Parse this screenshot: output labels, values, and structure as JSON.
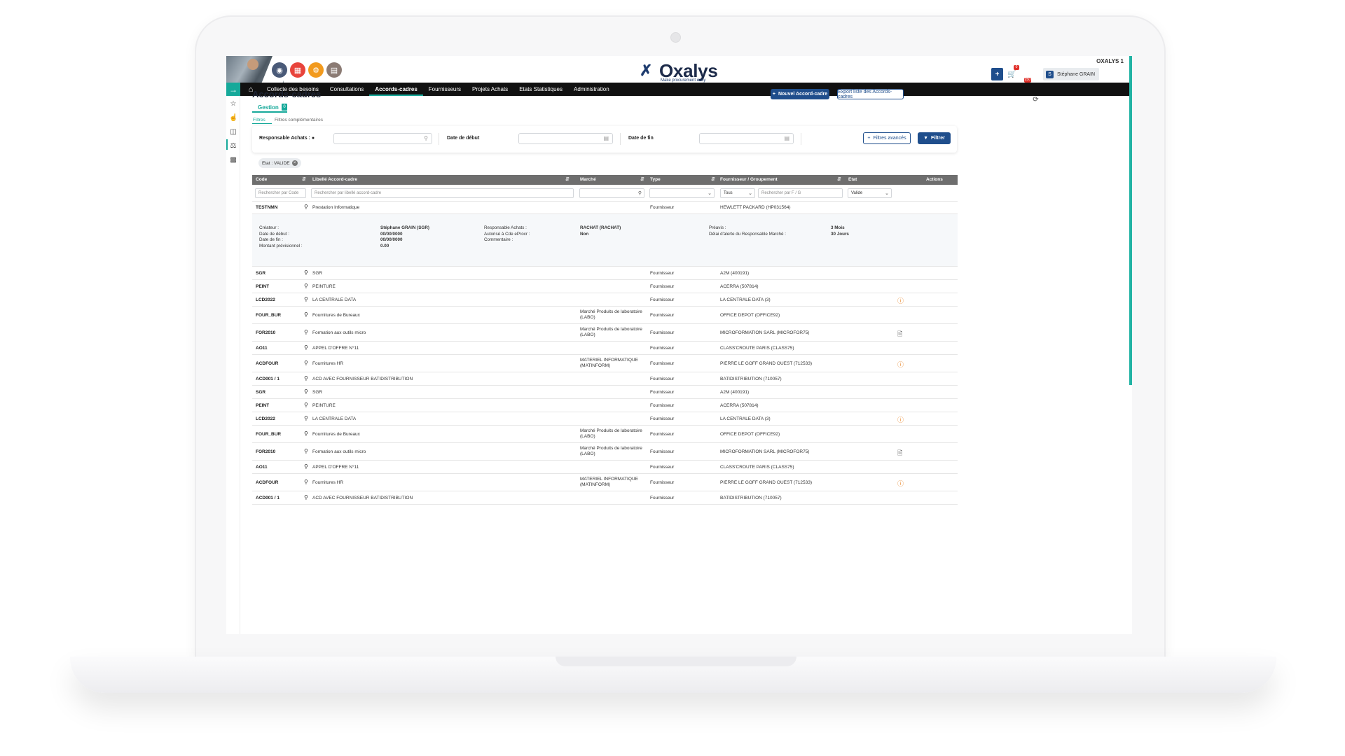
{
  "header": {
    "logo_word": "Oxalys",
    "logo_tagline": "Make procurement easy",
    "company": "OXALYS 1",
    "user_name": "Stéphane GRAIN",
    "user_initial": "S",
    "cart_badge": "0",
    "notif_badge": "250",
    "module_colors": [
      "#4a5a78",
      "#e8443c",
      "#f29a1d",
      "#8b7b74"
    ]
  },
  "nav": {
    "items": [
      "Collecte des besoins",
      "Consultations",
      "Accords-cadres",
      "Fournisseurs",
      "Projets Achats",
      "Etats Statistiques",
      "Administration"
    ],
    "active": "Accords-cadres"
  },
  "page": {
    "title": "Accords-cadres",
    "new_button": "Nouvel Accord-cadre",
    "export_button": "Export liste des Accords-cadres",
    "tab_label": "Gestion",
    "tab_count": "0",
    "subtabs": [
      "Filtres",
      "Filtres complémentaires"
    ]
  },
  "filters": {
    "responsable_label": "Responsable Achats :",
    "date_debut_label": "Date de début",
    "date_fin_label": "Date de fin",
    "advanced_button": "Filtres avancés",
    "filter_button": "Filtrer",
    "chip": "Etat : VALIDE"
  },
  "table": {
    "columns": [
      "Code",
      "Libellé Accord-cadre",
      "Marché",
      "Type",
      "Fournisseur / Groupement",
      "Etat",
      "Actions"
    ],
    "filters": {
      "code_placeholder": "Rechercher par Code",
      "libelle_placeholder": "Rechercher par libellé accord-cadre",
      "fournisseur_select": "Tous",
      "fournisseur_placeholder": "Rechercher par F / G",
      "etat_select": "Valide"
    },
    "first_row": {
      "code": "TESTNMN",
      "libelle": "Prestation Informatique",
      "type": "Fournisseur",
      "fournisseur": "HEWLETT PACKARD (HP031564)"
    },
    "detail": {
      "col1_labels": "Créateur :\nDate de début :\nDate de fin :\nMontant prévisionnel :",
      "col1_values": "Stéphane GRAIN (SGR)\n00/00/0000\n00/00/0000\n0.00",
      "col2_labels": "Responsable Achats :\nAutorisé à Cde eProcr :\nCommentaire :",
      "col2_values": "RACHAT (RACHAT)\nNon",
      "col3_labels": "Préavis :\nDélai d'alerte du Responsable Marché :",
      "col3_values": "3 Mois\n30 Jours"
    },
    "rows": [
      {
        "code": "SGR",
        "libelle": "SGR",
        "marche": "",
        "type": "Fournisseur",
        "fournisseur": "A2M (400191)",
        "action": ""
      },
      {
        "code": "PEINT",
        "libelle": "PEINTURE",
        "marche": "",
        "type": "Fournisseur",
        "fournisseur": "ACERRA (507814)",
        "action": ""
      },
      {
        "code": "LCD2022",
        "libelle": "LA CENTRALE DATA",
        "marche": "",
        "type": "Fournisseur",
        "fournisseur": "LA CENTRALE DATA (3)",
        "action": "warn"
      },
      {
        "code": "FOUR_BUR",
        "libelle": "Fournitures de Bureaux",
        "marche": "Marché Produits de laboratoire\n(LABO)",
        "type": "Fournisseur",
        "fournisseur": "OFFICE DEPOT (OFFICE92)",
        "action": ""
      },
      {
        "code": "FOR2010",
        "libelle": "Formation aux outils micro",
        "marche": "Marché Produits de laboratoire\n(LABO)",
        "type": "Fournisseur",
        "fournisseur": "MICROFORMATION SARL (MICROFOR75)",
        "action": "doc"
      },
      {
        "code": "AO11",
        "libelle": "APPEL D'OFFRE N°11",
        "marche": "",
        "type": "Fournisseur",
        "fournisseur": "CLASS'CROUTE PARIS (CLASS75)",
        "action": ""
      },
      {
        "code": "ACDFOUR",
        "libelle": "Fournitures HR",
        "marche": "MATERIEL INFORMATIQUE\n(MATINFORM)",
        "type": "Fournisseur",
        "fournisseur": "PIERRE LE GOFF GRAND OUEST (712533)",
        "action": "warn"
      },
      {
        "code": "ACD001 / 1",
        "libelle": "ACD AVEC FOURNISSEUR BATIDISTRIBUTION",
        "marche": "",
        "type": "Fournisseur",
        "fournisseur": "BATIDISTRIBUTION (710057)",
        "action": ""
      },
      {
        "code": "SGR",
        "libelle": "SGR",
        "marche": "",
        "type": "Fournisseur",
        "fournisseur": "A2M (400191)",
        "action": ""
      },
      {
        "code": "PEINT",
        "libelle": "PEINTURE",
        "marche": "",
        "type": "Fournisseur",
        "fournisseur": "ACERRA (507814)",
        "action": ""
      },
      {
        "code": "LCD2022",
        "libelle": "LA CENTRALE DATA",
        "marche": "",
        "type": "Fournisseur",
        "fournisseur": "LA CENTRALE DATA (3)",
        "action": "warn"
      },
      {
        "code": "FOUR_BUR",
        "libelle": "Fournitures de Bureaux",
        "marche": "Marché Produits de laboratoire\n(LABO)",
        "type": "Fournisseur",
        "fournisseur": "OFFICE DEPOT (OFFICE92)",
        "action": ""
      },
      {
        "code": "FOR2010",
        "libelle": "Formation aux outils micro",
        "marche": "Marché Produits de laboratoire\n(LABO)",
        "type": "Fournisseur",
        "fournisseur": "MICROFORMATION SARL (MICROFOR75)",
        "action": "doc"
      },
      {
        "code": "AO11",
        "libelle": "APPEL D'OFFRE N°11",
        "marche": "",
        "type": "Fournisseur",
        "fournisseur": "CLASS'CROUTE PARIS (CLASS75)",
        "action": ""
      },
      {
        "code": "ACDFOUR",
        "libelle": "Fournitures HR",
        "marche": "MATERIEL INFORMATIQUE\n(MATINFORM)",
        "type": "Fournisseur",
        "fournisseur": "PIERRE LE GOFF GRAND OUEST (712533)",
        "action": "warn"
      },
      {
        "code": "ACD001 / 1",
        "libelle": "ACD AVEC FOURNISSEUR BATIDISTRIBUTION",
        "marche": "",
        "type": "Fournisseur",
        "fournisseur": "BATIDISTRIBUTION (710057)",
        "action": ""
      }
    ]
  }
}
